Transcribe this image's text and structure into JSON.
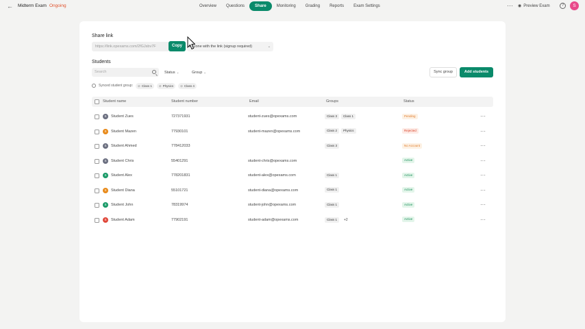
{
  "header": {
    "back_icon": "arrow-left-icon",
    "exam_title": "Midterm Exam",
    "exam_status": "Ongoing",
    "tabs": [
      {
        "label": "Overview"
      },
      {
        "label": "Questions"
      },
      {
        "label": "Share",
        "active": true
      },
      {
        "label": "Monitoring"
      },
      {
        "label": "Grading"
      },
      {
        "label": "Reports"
      },
      {
        "label": "Exam Settings"
      }
    ],
    "more_label": "···",
    "preview_label": "Preview Exam",
    "help_label": "?",
    "avatar_initial": "S"
  },
  "share": {
    "label": "Share link",
    "link_value": "https://link.opexams.com/2fGJsbv7F",
    "copy_label": "Copy",
    "access_value": "Anyone with the link (signup required)"
  },
  "students": {
    "label": "Students",
    "search_placeholder": "Search",
    "filters": [
      "Status",
      "Group"
    ],
    "sync_label": "Sync group",
    "add_label": "Add students",
    "synced_label": "Synced student group:",
    "synced_groups": [
      "Class 1",
      "Physics",
      "Class 4"
    ],
    "columns": [
      "Student name",
      "Student number",
      "Email",
      "Groups",
      "Status"
    ],
    "rows": [
      {
        "initial": "S",
        "avatar_color": "#6b6f80",
        "name": "Student Zues",
        "number": "727371931",
        "email": "student-zues@opexams.com",
        "groups": [
          "Class 3",
          "Class 1"
        ],
        "more": "",
        "status": "Pending",
        "status_color": "#e07b2a",
        "status_bg": "#fdf1e4"
      },
      {
        "initial": "S",
        "avatar_color": "#e88a1a",
        "name": "Student Mazen",
        "number": "77930101",
        "email": "student-mazen@opexams.com",
        "groups": [
          "Class 2",
          "Physics"
        ],
        "more": "",
        "status": "Rejected",
        "status_color": "#d9452b",
        "status_bg": "#fdeae5"
      },
      {
        "initial": "S",
        "avatar_color": "#6b6f80",
        "name": "Student Ahmed",
        "number": "778412033",
        "email": "",
        "groups": [
          "Class 3"
        ],
        "more": "",
        "status": "No Account",
        "status_color": "#e07b2a",
        "status_bg": "#fdf1e4"
      },
      {
        "initial": "S",
        "avatar_color": "#6b6f80",
        "name": "Student Chris",
        "number": "55401291",
        "email": "student-chris@opexams.com",
        "groups": [],
        "more": "",
        "status": "Active",
        "status_color": "#1a8f5a",
        "status_bg": "#e3f5ea"
      },
      {
        "initial": "S",
        "avatar_color": "#1a9a68",
        "name": "Student Alex",
        "number": "778201831",
        "email": "student-alex@opexams.com",
        "groups": [
          "Class 1"
        ],
        "more": "",
        "status": "Active",
        "status_color": "#1a8f5a",
        "status_bg": "#e3f5ea"
      },
      {
        "initial": "S",
        "avatar_color": "#e88a1a",
        "name": "Student Diana",
        "number": "55101721",
        "email": "student-diana@opexams.com",
        "groups": [
          "Class 1"
        ],
        "more": "",
        "status": "Active",
        "status_color": "#1a8f5a",
        "status_bg": "#e3f5ea"
      },
      {
        "initial": "S",
        "avatar_color": "#1a9a68",
        "name": "Student John",
        "number": "78319974",
        "email": "student-john@opexams.com",
        "groups": [
          "Class 1"
        ],
        "more": "",
        "status": "Active",
        "status_color": "#1a8f5a",
        "status_bg": "#e3f5ea"
      },
      {
        "initial": "S",
        "avatar_color": "#e0473a",
        "name": "Student Adam",
        "number": "77902191",
        "email": "student-adam@opexams.com",
        "groups": [
          "Class 1"
        ],
        "more": "+2",
        "status": "Active",
        "status_color": "#1a8f5a",
        "status_bg": "#e3f5ea"
      }
    ]
  },
  "colors": {
    "accent": "#0a8a6a",
    "ongoing": "#e0502b"
  }
}
